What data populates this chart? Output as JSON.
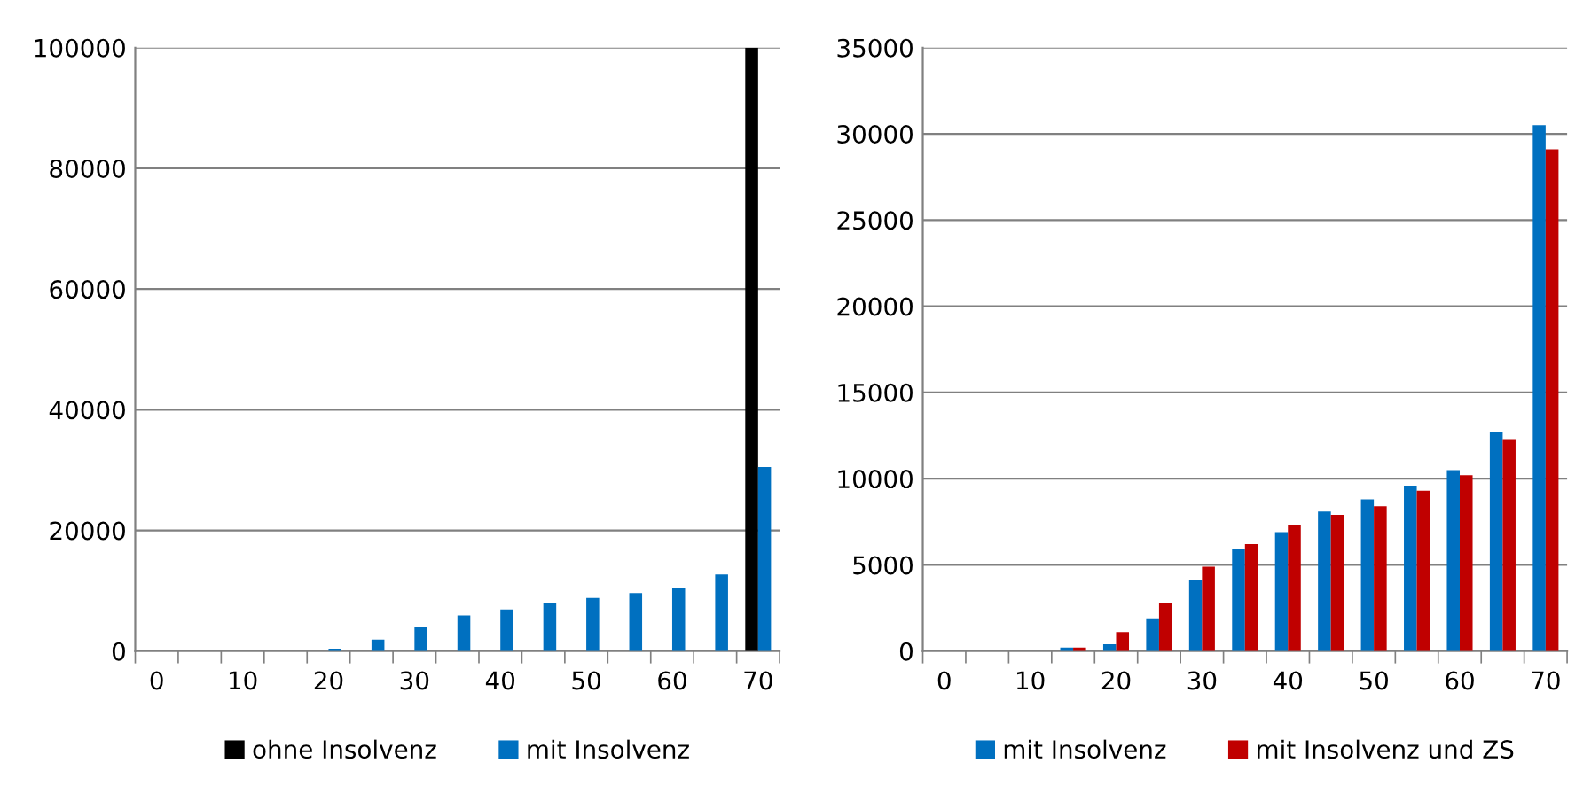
{
  "chart_data": [
    {
      "type": "bar",
      "categories": [
        "0",
        null,
        "10",
        null,
        "20",
        null,
        "30",
        null,
        "40",
        null,
        "50",
        null,
        "60",
        null,
        "70"
      ],
      "series": [
        {
          "name": "ohne Insolvenz",
          "color": "#000000",
          "values": [
            0,
            0,
            0,
            0,
            0,
            0,
            0,
            0,
            0,
            0,
            0,
            0,
            0,
            0,
            100000
          ]
        },
        {
          "name": "mit Insolvenz",
          "color": "#0070c0",
          "values": [
            0,
            0,
            0,
            0,
            400,
            1900,
            4000,
            5900,
            6900,
            8000,
            8800,
            9600,
            10500,
            12700,
            30500
          ]
        }
      ],
      "ylim": [
        0,
        100000
      ],
      "yticks": [
        0,
        20000,
        40000,
        60000,
        80000,
        100000
      ],
      "grid": "y",
      "legend": "bottom"
    },
    {
      "type": "bar",
      "categories": [
        "0",
        null,
        "10",
        null,
        "20",
        null,
        "30",
        null,
        "40",
        null,
        "50",
        null,
        "60",
        null,
        "70"
      ],
      "series": [
        {
          "name": "mit Insolvenz",
          "color": "#0070c0",
          "values": [
            0,
            0,
            0,
            200,
            400,
            1900,
            4100,
            5900,
            6900,
            8100,
            8800,
            9600,
            10500,
            12700,
            30500
          ]
        },
        {
          "name": "mit Insolvenz und ZS",
          "color": "#c00000",
          "values": [
            0,
            0,
            0,
            200,
            1100,
            2800,
            4900,
            6200,
            7300,
            7900,
            8400,
            9300,
            10200,
            12300,
            29100
          ]
        }
      ],
      "ylim": [
        0,
        35000
      ],
      "yticks": [
        0,
        5000,
        10000,
        15000,
        20000,
        25000,
        30000,
        35000
      ],
      "grid": "y",
      "legend": "bottom"
    }
  ]
}
